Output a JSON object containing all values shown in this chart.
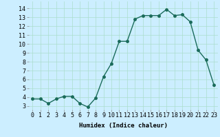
{
  "x": [
    0,
    1,
    2,
    3,
    4,
    5,
    6,
    7,
    8,
    9,
    10,
    11,
    12,
    13,
    14,
    15,
    16,
    17,
    18,
    19,
    20,
    21,
    22,
    23
  ],
  "y": [
    3.8,
    3.8,
    3.3,
    3.8,
    4.1,
    4.1,
    3.3,
    2.9,
    3.9,
    6.3,
    7.8,
    10.3,
    10.3,
    12.8,
    13.2,
    13.2,
    13.2,
    13.9,
    13.2,
    13.3,
    12.5,
    9.3,
    8.2,
    5.4
  ],
  "line_color": "#1a6b5a",
  "marker_color": "#1a6b5a",
  "bg_color": "#cceeff",
  "grid_color": "#aaddcc",
  "xlabel": "Humidex (Indice chaleur)",
  "xlabel_fontsize": 6.5,
  "ytick_labels": [
    "3",
    "4",
    "5",
    "6",
    "7",
    "8",
    "9",
    "10",
    "11",
    "12",
    "13",
    "14"
  ],
  "ytick_values": [
    3,
    4,
    5,
    6,
    7,
    8,
    9,
    10,
    11,
    12,
    13,
    14
  ],
  "ylim": [
    2.6,
    14.8
  ],
  "xlim": [
    -0.5,
    23.5
  ],
  "tick_fontsize": 6,
  "linewidth": 1.0,
  "markersize": 2.5
}
